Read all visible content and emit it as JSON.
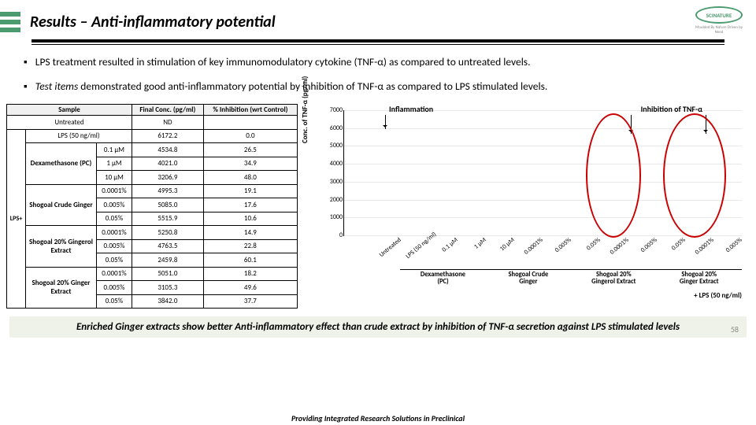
{
  "header": {
    "title": "Results – Anti-inflammatory potential",
    "logo_text": "SCINATURE",
    "logo_sub": "Moulded By Nature  Driven by Need"
  },
  "bullets": [
    "LPS treatment resulted in stimulation of key immunomodulatory cytokine (TNF-α)  as compared to untreated levels.",
    "Test items demonstrated good anti-inflammatory potential by inhibition of TNF-α as compared to LPS stimulated levels."
  ],
  "table": {
    "headers": [
      "Sample",
      "",
      "Final Conc. (pg/ml)",
      "% Inhibition (wrt Control)"
    ],
    "lps_label": "LPS+",
    "rows": [
      {
        "sample": "Untreated",
        "conc": "",
        "fc": "ND",
        "inh": ""
      },
      {
        "sample": "LPS (50 ng/ml)",
        "conc": "",
        "fc": "6172.2",
        "inh": "0.0"
      },
      {
        "sample": "Dexamethasone (PC)",
        "span": 3,
        "sub": [
          [
            "0.1 µM",
            "4534.8",
            "26.5"
          ],
          [
            "1 µM",
            "4021.0",
            "34.9"
          ],
          [
            "10 µM",
            "3206.9",
            "48.0"
          ]
        ]
      },
      {
        "sample": "Shogoal Crude Ginger",
        "span": 3,
        "sub": [
          [
            "0.0001%",
            "4995.3",
            "19.1"
          ],
          [
            "0.005%",
            "5085.0",
            "17.6"
          ],
          [
            "0.05%",
            "5515.9",
            "10.6"
          ]
        ]
      },
      {
        "sample": "Shogoal 20% Gingerol Extract",
        "span": 3,
        "sub": [
          [
            "0.0001%",
            "5250.8",
            "14.9"
          ],
          [
            "0.005%",
            "4763.5",
            "22.8"
          ],
          [
            "0.05%",
            "2459.8",
            "60.1"
          ]
        ]
      },
      {
        "sample": "Shogoal 20% Ginger Extract",
        "span": 3,
        "sub": [
          [
            "0.0001%",
            "5051.0",
            "18.2"
          ],
          [
            "0.005%",
            "3105.3",
            "49.6"
          ],
          [
            "0.05%",
            "3842.0",
            "37.7"
          ]
        ]
      }
    ]
  },
  "chart": {
    "ylabel": "Conc. of TNF-α (pg/ml)",
    "ymax": 7000,
    "ytick": 1000,
    "ann_inflam": "Inflammation",
    "ann_inhib": "Inhibition of TNF-α",
    "lps_strip": "+ LPS (50 ng/ml)",
    "bars": [
      {
        "v": 200,
        "c": "#4aa3df",
        "x": "Untreated"
      },
      {
        "v": 6172,
        "c": "#e77e2d",
        "x": "LPS (50 ng/ml)"
      },
      {
        "v": 4535,
        "c": "#a6a6a6",
        "x": "0.1 µM"
      },
      {
        "v": 4021,
        "c": "#f4c242",
        "x": "1 µM"
      },
      {
        "v": 3207,
        "c": "#6b8bc1",
        "x": "10 µM"
      },
      {
        "v": 4995,
        "c": "#8fb84a",
        "x": "0.0001%"
      },
      {
        "v": 5085,
        "c": "#3a5e9b",
        "x": "0.005%"
      },
      {
        "v": 5516,
        "c": "#9c5b22",
        "x": "0.05%"
      },
      {
        "v": 5251,
        "c": "#7a7a7a",
        "x": "0.0001%"
      },
      {
        "v": 4764,
        "c": "#b68d22",
        "x": "0.005%"
      },
      {
        "v": 2460,
        "c": "#41628e",
        "x": "0.05%"
      },
      {
        "v": 5051,
        "c": "#6a8f36",
        "x": "0.0001%"
      },
      {
        "v": 3105,
        "c": "#bf5b17",
        "x": "0.005%"
      },
      {
        "v": 3842,
        "c": "#c9412a",
        "x": "0.05%"
      }
    ],
    "groups": [
      {
        "label": "",
        "span": 2
      },
      {
        "label": "Dexamethasone|(PC)",
        "span": 3
      },
      {
        "label": "Shogoal Crude|Ginger",
        "span": 3
      },
      {
        "label": "Shogoal 20%|Gingerol Extract",
        "span": 3
      },
      {
        "label": "Shogoal 20%|Ginger Extract",
        "span": 3
      }
    ]
  },
  "conclusion": "Enriched Ginger extracts show better Anti-inflammatory effect than crude extract by inhibition of TNF-α secretion against LPS stimulated levels",
  "page_num": "58",
  "footer": "Providing Integrated Research Solutions in Preclinical"
}
